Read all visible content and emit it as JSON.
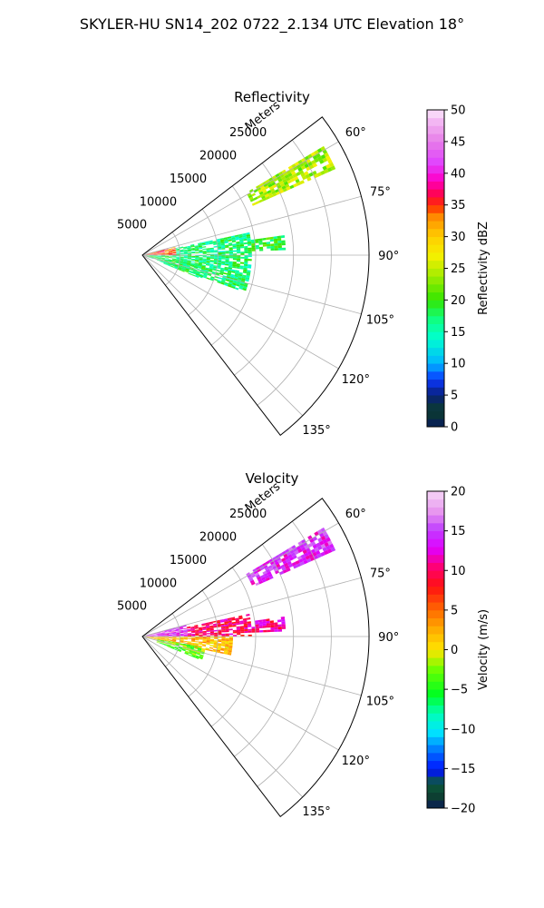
{
  "figure": {
    "suptitle": "SKYLER-HU  SN14_202  0722_2.134 UTC Elevation 18°"
  },
  "chart_data": [
    {
      "type": "polar-sector",
      "title": "Reflectivity",
      "radial_axis_label": "Meters",
      "radial_ticks": [
        5000,
        10000,
        15000,
        20000,
        25000
      ],
      "radial_tick_labels": [
        "5000",
        "10000",
        "15000",
        "20000",
        "25000"
      ],
      "rlim": [
        0,
        30000
      ],
      "theta_range_deg": [
        52.5,
        142.5
      ],
      "theta_ticks": [
        "60°",
        "75°",
        "90°",
        "105°",
        "120°",
        "135°"
      ],
      "grid": true,
      "colorbar": {
        "label": "Reflectivity dBZ",
        "range": [
          0,
          50
        ],
        "ticks": [
          "0",
          "5",
          "10",
          "15",
          "20",
          "25",
          "30",
          "35",
          "40",
          "45",
          "50"
        ]
      },
      "echo_regions": [
        {
          "theta": [
            59,
            66
          ],
          "r": [
            16000,
            28000
          ],
          "value": 24
        },
        {
          "theta": [
            75,
            90
          ],
          "r": [
            500,
            4500
          ],
          "value": 34
        },
        {
          "theta": [
            78,
            90
          ],
          "r": [
            4500,
            14500
          ],
          "value": 17
        },
        {
          "theta": [
            82,
            88
          ],
          "r": [
            14500,
            19000
          ],
          "value": 19
        },
        {
          "theta": [
            90,
            110
          ],
          "r": [
            500,
            14500
          ],
          "value": 17
        },
        {
          "theta": [
            98,
            112
          ],
          "r": [
            3000,
            8500
          ],
          "value": 18
        }
      ]
    },
    {
      "type": "polar-sector",
      "title": "Velocity",
      "radial_axis_label": "Meters",
      "radial_ticks": [
        5000,
        10000,
        15000,
        20000,
        25000
      ],
      "radial_tick_labels": [
        "5000",
        "10000",
        "15000",
        "20000",
        "25000"
      ],
      "rlim": [
        0,
        30000
      ],
      "theta_range_deg": [
        52.5,
        142.5
      ],
      "theta_ticks": [
        "60°",
        "75°",
        "90°",
        "105°",
        "120°",
        "135°"
      ],
      "grid": true,
      "colorbar": {
        "label": "Velocity (m/s)",
        "range": [
          -20,
          20
        ],
        "ticks": [
          "−20",
          "−15",
          "−10",
          "−5",
          "0",
          "5",
          "10",
          "15",
          "20"
        ]
      },
      "echo_regions": [
        {
          "theta": [
            59,
            66
          ],
          "r": [
            16000,
            28000
          ],
          "value": 14
        },
        {
          "theta": [
            75,
            90
          ],
          "r": [
            500,
            6000
          ],
          "value": 14
        },
        {
          "theta": [
            78,
            90
          ],
          "r": [
            6000,
            14500
          ],
          "value": 10
        },
        {
          "theta": [
            82,
            88
          ],
          "r": [
            14500,
            19000
          ],
          "value": 11
        },
        {
          "theta": [
            90,
            102
          ],
          "r": [
            500,
            12000
          ],
          "value": 2
        },
        {
          "theta": [
            100,
            112
          ],
          "r": [
            2000,
            8500
          ],
          "value": -3
        }
      ]
    }
  ]
}
